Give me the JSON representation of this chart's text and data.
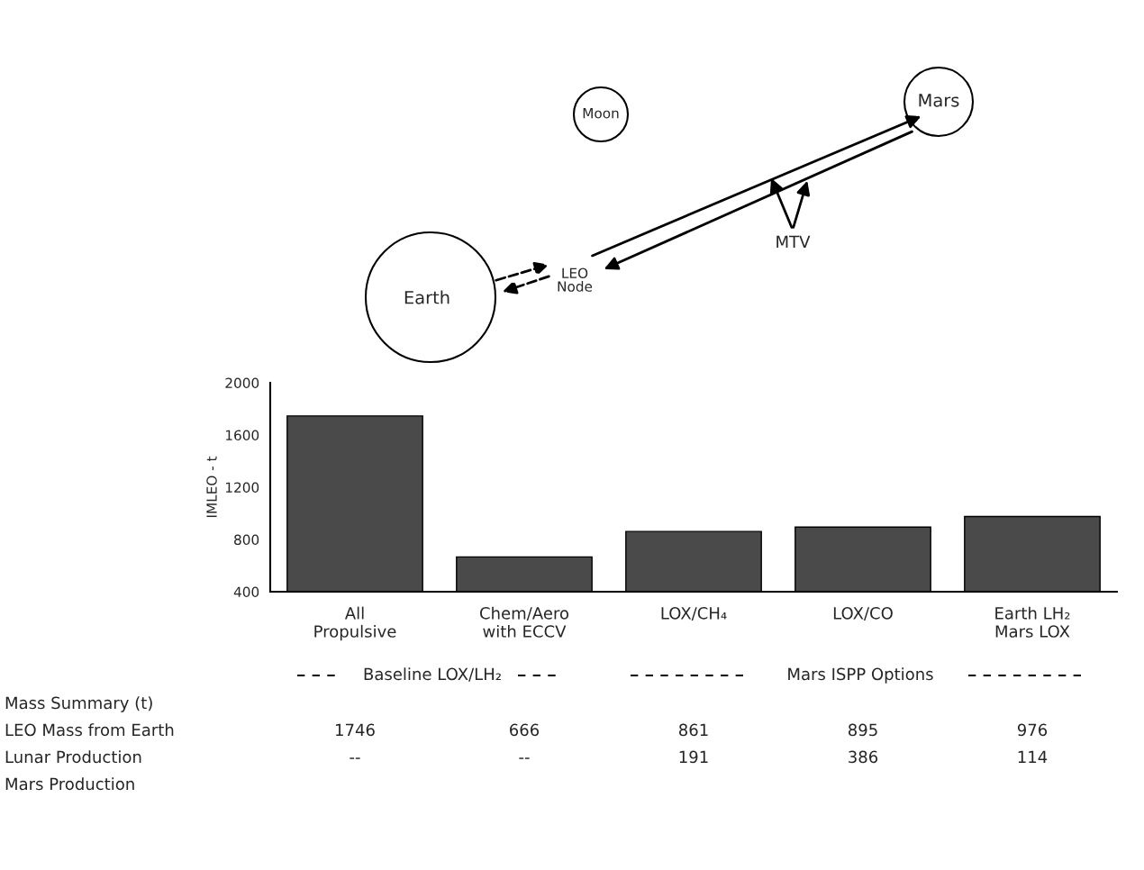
{
  "chart_data": {
    "type": "bar",
    "categories": [
      "All\nPropulsive",
      "Chem/Aero\nwith ECCV",
      "LOX/CH₄",
      "LOX/CO",
      "Earth LH₂\nMars LOX"
    ],
    "values": [
      1746,
      666,
      861,
      895,
      976
    ],
    "color": "#4a4a4a",
    "ylabel": "IMLEO - t",
    "ylim": [
      400,
      2000
    ],
    "yticks": [
      400,
      800,
      1200,
      1600,
      2000
    ],
    "grid": false,
    "legend": false,
    "data_labels": true,
    "annotations": [
      "Moon",
      "Mars",
      "Earth",
      "LEO\nNode",
      "MTV",
      "Baseline LOX/LH₂",
      "Mars ISPP Options",
      "Mass Summary (t)",
      "LEO Mass from Earth",
      "Lunar Production",
      "Mars Production",
      "--",
      "--",
      "191",
      "386",
      "114"
    ]
  }
}
